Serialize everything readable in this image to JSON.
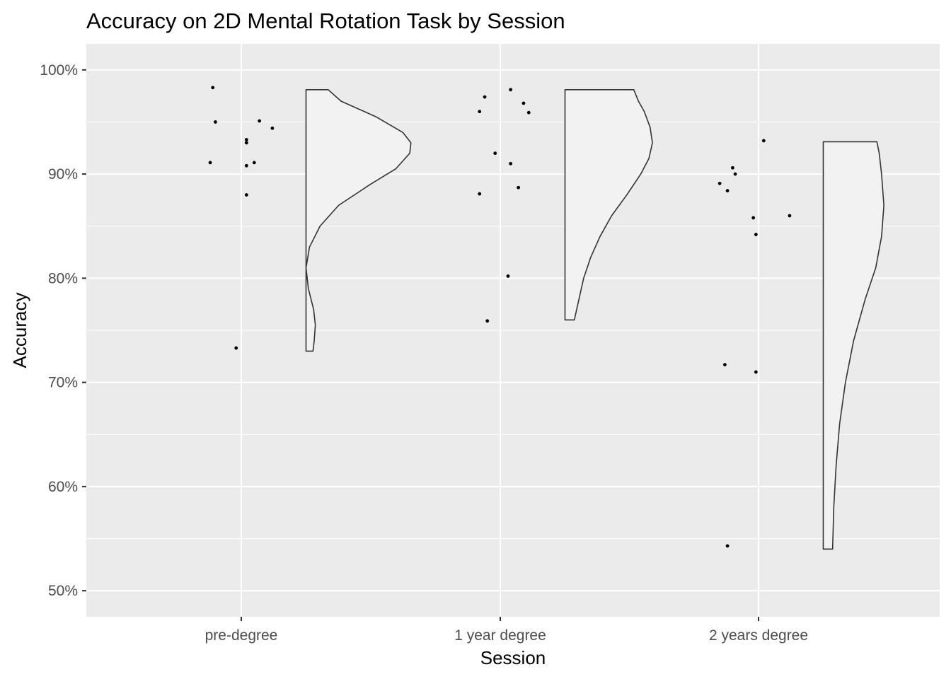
{
  "chart_data": {
    "type": "scatter",
    "title": "Accuracy on 2D Mental Rotation Task by Session",
    "xlabel": "Session",
    "ylabel": "Accuracy",
    "categories": [
      "pre-degree",
      "1 year degree",
      "2 years degree"
    ],
    "y_ticks": [
      0.5,
      0.6,
      0.7,
      0.8,
      0.9,
      1.0
    ],
    "y_tick_labels": [
      "50%",
      "60%",
      "70%",
      "80%",
      "90%",
      "100%"
    ],
    "ylim": [
      0.475,
      1.025
    ],
    "grid": true,
    "legend": "none",
    "colors": {
      "panel": "#ebebeb",
      "grid": "#ffffff",
      "point": "#000000",
      "violin_fill": "#f2f2f2",
      "violin_stroke": "#333333"
    },
    "series": [
      {
        "category": "pre-degree",
        "points": [
          {
            "jitter": -0.11,
            "y": 0.983
          },
          {
            "jitter": -0.1,
            "y": 0.95
          },
          {
            "jitter": 0.07,
            "y": 0.951
          },
          {
            "jitter": 0.12,
            "y": 0.944
          },
          {
            "jitter": 0.02,
            "y": 0.933
          },
          {
            "jitter": 0.02,
            "y": 0.93
          },
          {
            "jitter": -0.12,
            "y": 0.911
          },
          {
            "jitter": 0.05,
            "y": 0.911
          },
          {
            "jitter": 0.02,
            "y": 0.908
          },
          {
            "jitter": 0.02,
            "y": 0.88
          },
          {
            "jitter": -0.02,
            "y": 0.733
          }
        ],
        "violin": {
          "ymin": 0.73,
          "ymax": 0.981,
          "profile": [
            [
              0.73,
              0.06
            ],
            [
              0.74,
              0.07
            ],
            [
              0.755,
              0.08
            ],
            [
              0.77,
              0.065
            ],
            [
              0.79,
              0.02
            ],
            [
              0.81,
              0.0
            ],
            [
              0.83,
              0.03
            ],
            [
              0.85,
              0.12
            ],
            [
              0.87,
              0.28
            ],
            [
              0.89,
              0.55
            ],
            [
              0.905,
              0.77
            ],
            [
              0.92,
              0.89
            ],
            [
              0.93,
              0.9
            ],
            [
              0.94,
              0.83
            ],
            [
              0.955,
              0.6
            ],
            [
              0.97,
              0.3
            ],
            [
              0.981,
              0.19
            ]
          ]
        }
      },
      {
        "category": "1 year degree",
        "points": [
          {
            "jitter": 0.04,
            "y": 0.981
          },
          {
            "jitter": -0.06,
            "y": 0.974
          },
          {
            "jitter": 0.09,
            "y": 0.968
          },
          {
            "jitter": -0.08,
            "y": 0.96
          },
          {
            "jitter": 0.11,
            "y": 0.959
          },
          {
            "jitter": -0.02,
            "y": 0.92
          },
          {
            "jitter": 0.04,
            "y": 0.91
          },
          {
            "jitter": 0.07,
            "y": 0.887
          },
          {
            "jitter": -0.08,
            "y": 0.881
          },
          {
            "jitter": 0.03,
            "y": 0.802
          },
          {
            "jitter": -0.05,
            "y": 0.759
          }
        ],
        "violin": {
          "ymin": 0.76,
          "ymax": 0.981,
          "profile": [
            [
              0.76,
              0.08
            ],
            [
              0.78,
              0.12
            ],
            [
              0.8,
              0.16
            ],
            [
              0.82,
              0.22
            ],
            [
              0.84,
              0.3
            ],
            [
              0.86,
              0.4
            ],
            [
              0.88,
              0.53
            ],
            [
              0.9,
              0.65
            ],
            [
              0.915,
              0.72
            ],
            [
              0.93,
              0.75
            ],
            [
              0.945,
              0.73
            ],
            [
              0.96,
              0.68
            ],
            [
              0.97,
              0.63
            ],
            [
              0.981,
              0.59
            ]
          ]
        }
      },
      {
        "category": "2 years degree",
        "points": [
          {
            "jitter": 0.02,
            "y": 0.932
          },
          {
            "jitter": -0.1,
            "y": 0.906
          },
          {
            "jitter": -0.09,
            "y": 0.9
          },
          {
            "jitter": -0.15,
            "y": 0.891
          },
          {
            "jitter": -0.12,
            "y": 0.884
          },
          {
            "jitter": 0.12,
            "y": 0.86
          },
          {
            "jitter": -0.02,
            "y": 0.858
          },
          {
            "jitter": -0.01,
            "y": 0.842
          },
          {
            "jitter": -0.13,
            "y": 0.717
          },
          {
            "jitter": -0.01,
            "y": 0.71
          },
          {
            "jitter": -0.12,
            "y": 0.543
          }
        ],
        "violin": {
          "ymin": 0.54,
          "ymax": 0.931,
          "profile": [
            [
              0.54,
              0.08
            ],
            [
              0.58,
              0.09
            ],
            [
              0.62,
              0.11
            ],
            [
              0.66,
              0.14
            ],
            [
              0.7,
              0.19
            ],
            [
              0.74,
              0.26
            ],
            [
              0.78,
              0.36
            ],
            [
              0.81,
              0.45
            ],
            [
              0.84,
              0.5
            ],
            [
              0.87,
              0.52
            ],
            [
              0.9,
              0.5
            ],
            [
              0.92,
              0.48
            ],
            [
              0.931,
              0.46
            ]
          ]
        }
      }
    ]
  }
}
